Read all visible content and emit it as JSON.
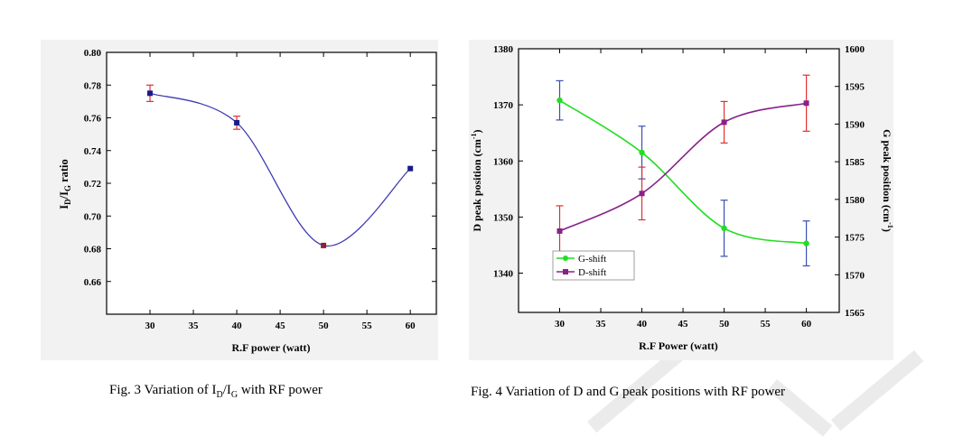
{
  "chart_data": [
    {
      "type": "scatter",
      "title": "",
      "xlabel": "R.F power (watt)",
      "ylabel": "ID/IG ratio",
      "xlim": [
        25,
        63
      ],
      "ylim": [
        0.64,
        0.8
      ],
      "xticks": [
        30,
        35,
        40,
        45,
        50,
        55,
        60
      ],
      "yticks": [
        "0.66",
        "0.68",
        "0.70",
        "0.72",
        "0.74",
        "0.76",
        "0.78",
        "0.80"
      ],
      "x": [
        30,
        40,
        50,
        60
      ],
      "y": [
        0.775,
        0.757,
        0.682,
        0.729
      ],
      "error": [
        0.005,
        0.004,
        0,
        0
      ],
      "fit_curve": true,
      "caption_prefix": "Fig. 3 Variation of  ",
      "caption_suffix": " with RF power"
    },
    {
      "type": "line",
      "title": "",
      "xlabel": "R.F Power (watt)",
      "ylabel_left": "D peak position (cm-1)",
      "ylabel_right": "G peak position (cm-1)",
      "x": [
        30,
        40,
        50,
        60
      ],
      "xlim": [
        25,
        64
      ],
      "ylim_left": [
        1333,
        1380
      ],
      "ylim_right": [
        1565,
        1600
      ],
      "xticks": [
        30,
        35,
        40,
        45,
        50,
        55,
        60
      ],
      "yticks_left": [
        "1340",
        "1350",
        "1360",
        "1370",
        "1380"
      ],
      "yticks_right": [
        "1565",
        "1570",
        "1575",
        "1580",
        "1585",
        "1590",
        "1595",
        "1600"
      ],
      "legend_position": "bottom-left",
      "series": [
        {
          "name": "G-shift",
          "axis": "left",
          "color": "#22dd22",
          "errcolor": "#3a4fb0",
          "values": [
            1370.8,
            1361.5,
            1348.0,
            1345.3
          ],
          "error": [
            3.5,
            4.7,
            5.0,
            4.0
          ]
        },
        {
          "name": "D-shift",
          "axis": "left",
          "color": "#882288",
          "errcolor": "#e03030",
          "values": [
            1347.5,
            1354.2,
            1366.9,
            1370.3
          ],
          "error": [
            4.5,
            4.7,
            3.7,
            5.0
          ]
        }
      ],
      "caption": "Fig. 4  Variation of D and G peak positions with RF power"
    }
  ]
}
